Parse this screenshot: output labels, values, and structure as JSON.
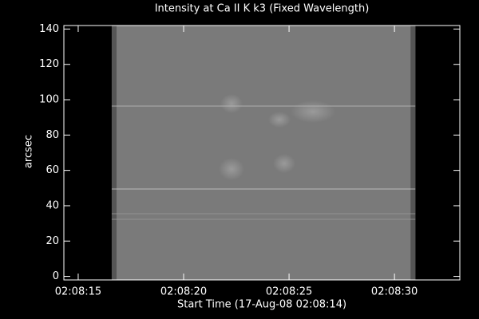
{
  "chart_data": {
    "type": "image",
    "title": "Intensity at Ca II K k3 (Fixed Wavelength)",
    "x_label": "Start Time (17-Aug-08 02:08:14)",
    "y_label": "arcsec",
    "xlim": [
      0.32,
      19.1
    ],
    "xticks": [
      {
        "value": 1,
        "label": "02:08:15"
      },
      {
        "value": 6,
        "label": "02:08:20"
      },
      {
        "value": 11,
        "label": "02:08:25"
      },
      {
        "value": 16,
        "label": "02:08:30"
      }
    ],
    "ylim": [
      -2,
      142
    ],
    "yticks": [
      0,
      20,
      40,
      60,
      80,
      100,
      120,
      140
    ],
    "image_xrange": [
      2.59,
      16.99
    ],
    "color": "#7a7a7a"
  }
}
